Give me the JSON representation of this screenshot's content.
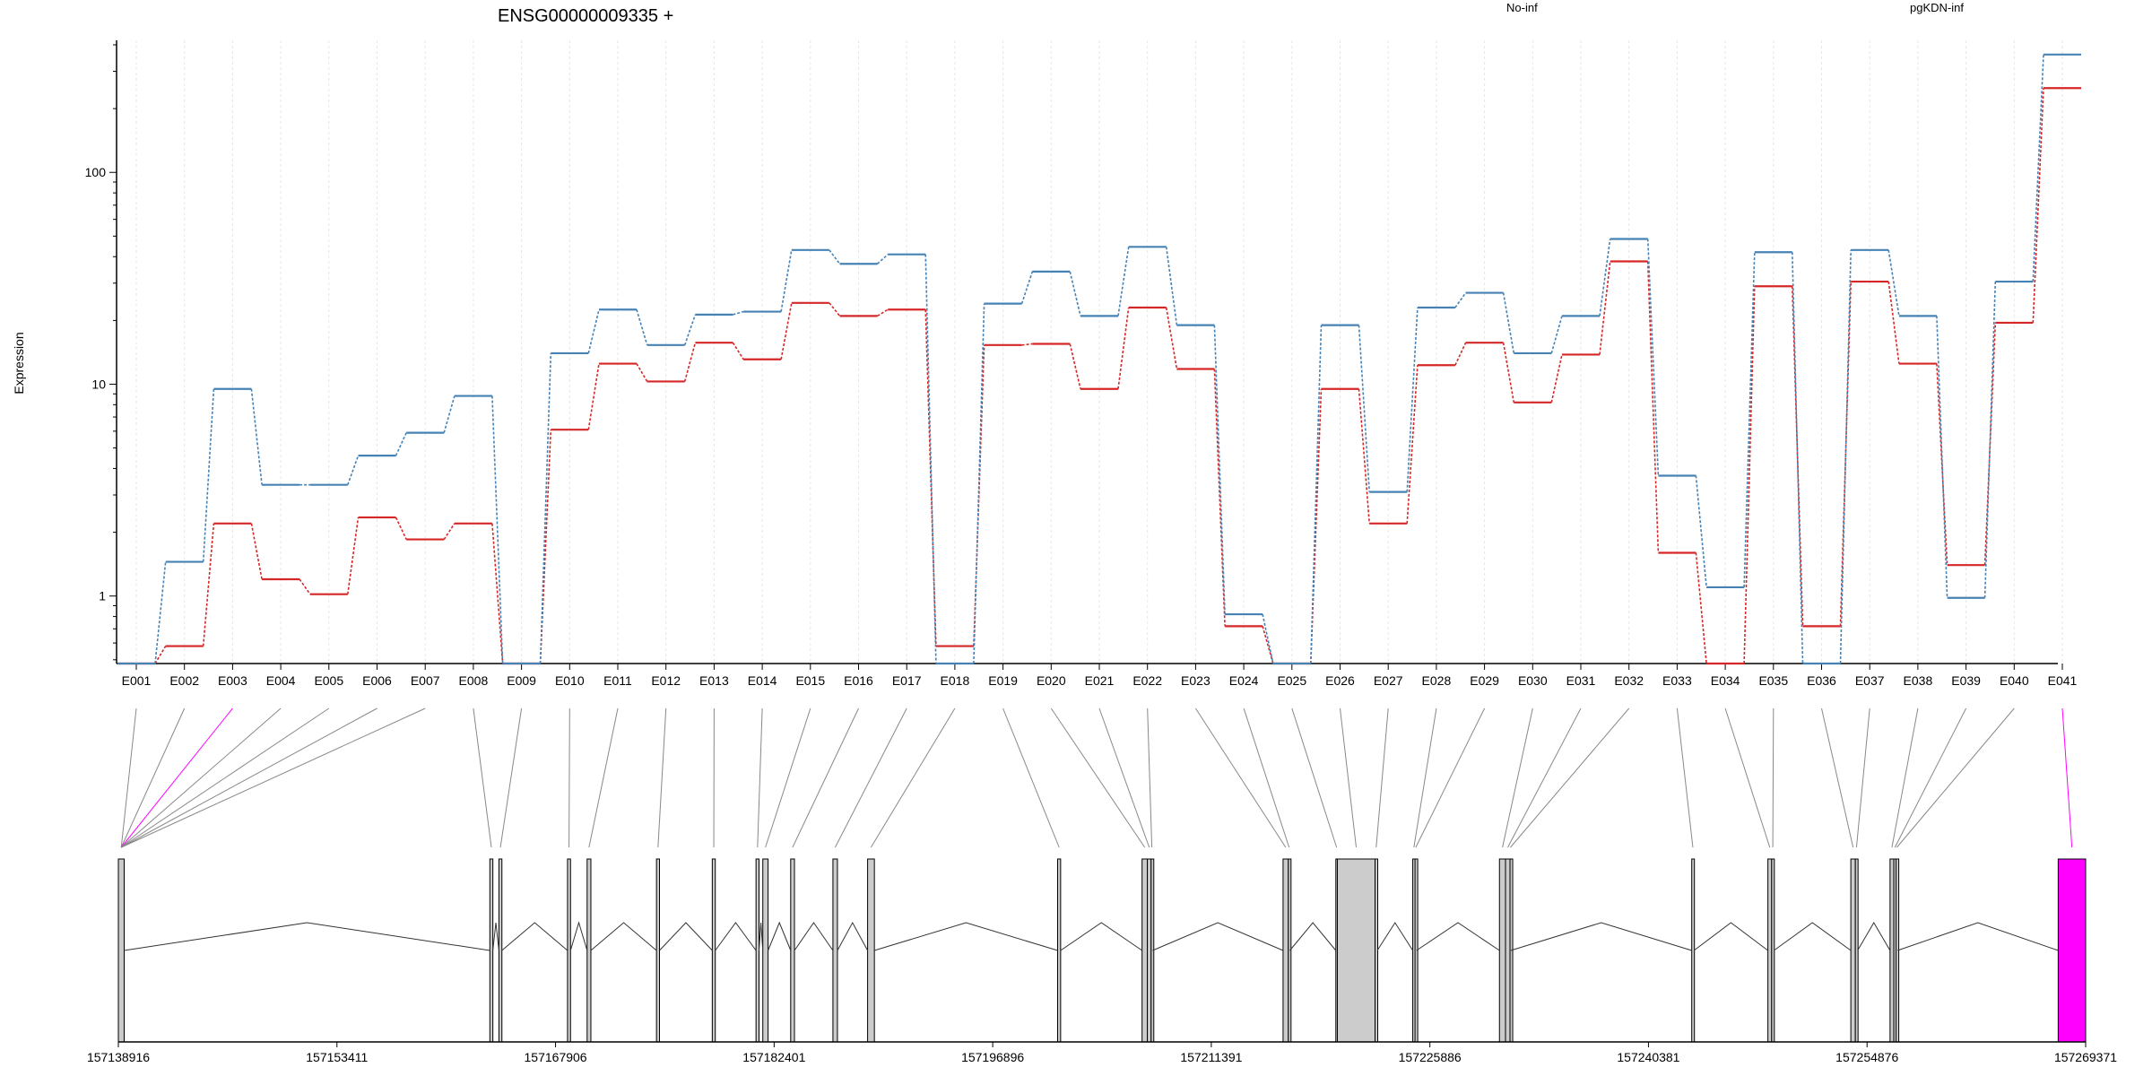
{
  "title": "ENSG00000009335 +",
  "ylabel": "Expression",
  "y_axis": {
    "scale": "log",
    "range": [
      0.48,
      420
    ],
    "tick_values": [
      1,
      10,
      100
    ],
    "tick_labels": [
      "1",
      "10",
      "100"
    ]
  },
  "grid": "vertical dashed lines at each exon",
  "colors": {
    "No-inf": "#d62728",
    "pgKDN-inf": "#4682b4",
    "axis": "#000000",
    "grid": "#e6e6e6",
    "connector": "#888888",
    "highlight": "#ff00ff",
    "exon_fill": "#cccccc"
  },
  "chart_data": {
    "type": "line",
    "title": "ENSG00000009335 +",
    "ylabel": "Expression",
    "yscale": "log",
    "legend_placement": "top-right",
    "categories": [
      "E001",
      "E002",
      "E003",
      "E004",
      "E005",
      "E006",
      "E007",
      "E008",
      "E009",
      "E010",
      "E011",
      "E012",
      "E013",
      "E014",
      "E015",
      "E016",
      "E017",
      "E018",
      "E019",
      "E020",
      "E021",
      "E022",
      "E023",
      "E024",
      "E025",
      "E026",
      "E027",
      "E028",
      "E029",
      "E030",
      "E031",
      "E032",
      "E033",
      "E034",
      "E035",
      "E036",
      "E037",
      "E038",
      "E039",
      "E040",
      "E041"
    ],
    "series": [
      {
        "name": "No-inf",
        "color": "#d62728",
        "values": [
          0.48,
          0.58,
          2.2,
          1.2,
          1.02,
          2.35,
          1.85,
          2.2,
          0.48,
          6.1,
          12.5,
          10.3,
          15.7,
          13.1,
          24.2,
          21,
          22.5,
          0.58,
          15.3,
          15.5,
          9.5,
          23,
          11.8,
          0.72,
          0.48,
          9.5,
          2.2,
          12.3,
          15.7,
          8.2,
          13.8,
          38,
          1.6,
          0.48,
          29,
          0.72,
          30.5,
          12.5,
          1.4,
          19.5,
          250
        ]
      },
      {
        "name": "pgKDN-inf",
        "color": "#4682b4",
        "values": [
          0.48,
          1.45,
          9.5,
          3.35,
          3.35,
          4.6,
          5.9,
          8.8,
          0.48,
          14,
          22.5,
          15.3,
          21.3,
          22,
          43,
          37,
          41,
          0.48,
          24,
          34,
          21,
          44.5,
          19,
          0.82,
          0.48,
          19,
          3.1,
          23,
          27,
          14,
          21,
          48.5,
          3.7,
          1.1,
          42,
          0.48,
          43,
          21,
          0.98,
          30.5,
          360
        ]
      }
    ],
    "genomic_axis": {
      "tick_labels": [
        "157138916",
        "157153411",
        "157167906",
        "157182401",
        "157196896",
        "157211391",
        "157225886",
        "157240381",
        "157254876",
        "157269371"
      ],
      "range": [
        157138916,
        157269371
      ]
    },
    "highlighted_exons": [
      "E003",
      "E041"
    ],
    "exons": [
      {
        "id": "E001",
        "start": 157138916,
        "end": 157139300
      },
      {
        "id": "E002",
        "start": 157138916,
        "end": 157139300
      },
      {
        "id": "E003",
        "start": 157138916,
        "end": 157139300
      },
      {
        "id": "E004",
        "start": 157138916,
        "end": 157139300
      },
      {
        "id": "E005",
        "start": 157138916,
        "end": 157139300
      },
      {
        "id": "E006",
        "start": 157138916,
        "end": 157139300
      },
      {
        "id": "E007",
        "start": 157138916,
        "end": 157139300
      },
      {
        "id": "E008",
        "start": 157163550,
        "end": 157163750
      },
      {
        "id": "E009",
        "start": 157164150,
        "end": 157164350
      },
      {
        "id": "E010",
        "start": 157168700,
        "end": 157168900
      },
      {
        "id": "E011",
        "start": 157170000,
        "end": 157170250
      },
      {
        "id": "E012",
        "start": 157174600,
        "end": 157174800
      },
      {
        "id": "E013",
        "start": 157178300,
        "end": 157178500
      },
      {
        "id": "E014",
        "start": 157181200,
        "end": 157181400
      },
      {
        "id": "E015",
        "start": 157181650,
        "end": 157182000
      },
      {
        "id": "E016",
        "start": 157183500,
        "end": 157183750
      },
      {
        "id": "E017",
        "start": 157186300,
        "end": 157186600
      },
      {
        "id": "E018",
        "start": 157188600,
        "end": 157189050
      },
      {
        "id": "E019",
        "start": 157201200,
        "end": 157201400
      },
      {
        "id": "E020",
        "start": 157206800,
        "end": 157207150
      },
      {
        "id": "E021",
        "start": 157207150,
        "end": 157207400
      },
      {
        "id": "E022",
        "start": 157207400,
        "end": 157207500
      },
      {
        "id": "E023",
        "start": 157216150,
        "end": 157216500
      },
      {
        "id": "E024",
        "start": 157216500,
        "end": 157216600
      },
      {
        "id": "E025",
        "start": 157219650,
        "end": 157219750
      },
      {
        "id": "E026",
        "start": 157219750,
        "end": 157222250
      },
      {
        "id": "E027",
        "start": 157222250,
        "end": 157222400
      },
      {
        "id": "E028",
        "start": 157224750,
        "end": 157224900
      },
      {
        "id": "E029",
        "start": 157224900,
        "end": 157225000
      },
      {
        "id": "E030",
        "start": 157230500,
        "end": 157230900
      },
      {
        "id": "E031",
        "start": 157230900,
        "end": 157231200
      },
      {
        "id": "E032",
        "start": 157231200,
        "end": 157231250
      },
      {
        "id": "E033",
        "start": 157243250,
        "end": 157243400
      },
      {
        "id": "E034",
        "start": 157248300,
        "end": 157248550
      },
      {
        "id": "E035",
        "start": 157248550,
        "end": 157248700
      },
      {
        "id": "E036",
        "start": 157253800,
        "end": 157254100
      },
      {
        "id": "E037",
        "start": 157254100,
        "end": 157254250
      },
      {
        "id": "E038",
        "start": 157256400,
        "end": 157256650
      },
      {
        "id": "E039",
        "start": 157256650,
        "end": 157256800
      },
      {
        "id": "E040",
        "start": 157256800,
        "end": 157256900
      },
      {
        "id": "E041",
        "start": 157267550,
        "end": 157269371
      }
    ]
  }
}
